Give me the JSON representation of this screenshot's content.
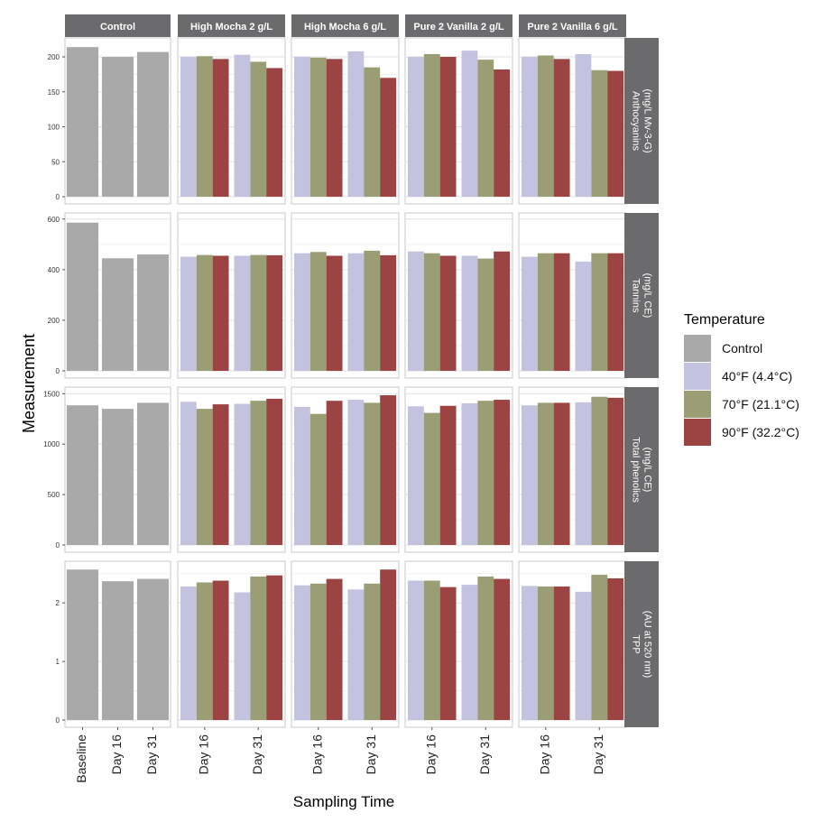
{
  "chart_data": {
    "type": "bar",
    "ylabel": "Measurement",
    "xlabel": "Sampling Time",
    "columns": [
      "Control",
      "High Mocha 2 g/L",
      "High Mocha 6 g/L",
      "Pure 2 Vanilla 2 g/L",
      "Pure 2 Vanilla 6 g/L"
    ],
    "legend": {
      "title": "Temperature",
      "position": "right",
      "entries": [
        {
          "label": "Control",
          "color": "#a9a9a9"
        },
        {
          "label": "40°F (4.4°C)",
          "color": "#c3c3e0"
        },
        {
          "label": "70°F (21.1°C)",
          "color": "#9b9d74"
        },
        {
          "label": "90°F (32.2°C)",
          "color": "#9c4444"
        }
      ]
    },
    "grid": true,
    "rows": [
      {
        "label": [
          "Anthocyanins",
          "(mg/L Mv-3-G)"
        ],
        "ylim": [
          0,
          222
        ],
        "ticks": [
          0,
          50,
          100,
          150,
          200
        ],
        "control": {
          "categories": [
            "Baseline",
            "Day 16",
            "Day 31"
          ],
          "values": [
            214,
            200,
            207
          ]
        },
        "treatments": [
          {
            "categories": [
              "Day 16",
              "Day 31"
            ],
            "series": [
              {
                "name": "40°F (4.4°C)",
                "values": [
                  200,
                  203
                ]
              },
              {
                "name": "70°F (21.1°C)",
                "values": [
                  201,
                  193
                ]
              },
              {
                "name": "90°F (32.2°C)",
                "values": [
                  197,
                  184
                ]
              }
            ]
          },
          {
            "categories": [
              "Day 16",
              "Day 31"
            ],
            "series": [
              {
                "name": "40°F (4.4°C)",
                "values": [
                  200,
                  208
                ]
              },
              {
                "name": "70°F (21.1°C)",
                "values": [
                  199,
                  185
                ]
              },
              {
                "name": "90°F (32.2°C)",
                "values": [
                  197,
                  170
                ]
              }
            ]
          },
          {
            "categories": [
              "Day 16",
              "Day 31"
            ],
            "series": [
              {
                "name": "40°F (4.4°C)",
                "values": [
                  200,
                  209
                ]
              },
              {
                "name": "70°F (21.1°C)",
                "values": [
                  204,
                  196
                ]
              },
              {
                "name": "90°F (32.2°C)",
                "values": [
                  200,
                  182
                ]
              }
            ]
          },
          {
            "categories": [
              "Day 16",
              "Day 31"
            ],
            "series": [
              {
                "name": "40°F (4.4°C)",
                "values": [
                  200,
                  204
                ]
              },
              {
                "name": "70°F (21.1°C)",
                "values": [
                  202,
                  181
                ]
              },
              {
                "name": "90°F (32.2°C)",
                "values": [
                  197,
                  180
                ]
              }
            ]
          }
        ]
      },
      {
        "label": [
          "Tannins",
          "(mg/L CE)"
        ],
        "ylim": [
          0,
          610
        ],
        "ticks": [
          0,
          200,
          400,
          600
        ],
        "control": {
          "categories": [
            "Baseline",
            "Day 16",
            "Day 31"
          ],
          "values": [
            586,
            445,
            460
          ]
        },
        "treatments": [
          {
            "categories": [
              "Day 16",
              "Day 31"
            ],
            "series": [
              {
                "name": "40°F (4.4°C)",
                "values": [
                  451,
                  455
                ]
              },
              {
                "name": "70°F (21.1°C)",
                "values": [
                  458,
                  458
                ]
              },
              {
                "name": "90°F (32.2°C)",
                "values": [
                  455,
                  457
                ]
              }
            ]
          },
          {
            "categories": [
              "Day 16",
              "Day 31"
            ],
            "series": [
              {
                "name": "40°F (4.4°C)",
                "values": [
                  465,
                  465
                ]
              },
              {
                "name": "70°F (21.1°C)",
                "values": [
                  470,
                  475
                ]
              },
              {
                "name": "90°F (32.2°C)",
                "values": [
                  455,
                  457
                ]
              }
            ]
          },
          {
            "categories": [
              "Day 16",
              "Day 31"
            ],
            "series": [
              {
                "name": "40°F (4.4°C)",
                "values": [
                  472,
                  455
                ]
              },
              {
                "name": "70°F (21.1°C)",
                "values": [
                  465,
                  444
                ]
              },
              {
                "name": "90°F (32.2°C)",
                "values": [
                  455,
                  472
                ]
              }
            ]
          },
          {
            "categories": [
              "Day 16",
              "Day 31"
            ],
            "series": [
              {
                "name": "40°F (4.4°C)",
                "values": [
                  451,
                  432
                ]
              },
              {
                "name": "70°F (21.1°C)",
                "values": [
                  465,
                  465
                ]
              },
              {
                "name": "90°F (32.2°C)",
                "values": [
                  465,
                  465
                ]
              }
            ]
          }
        ]
      },
      {
        "label": [
          "Total phenolics",
          "(mg/L CE)"
        ],
        "ylim": [
          0,
          1530
        ],
        "ticks": [
          0,
          500,
          1000,
          1500
        ],
        "control": {
          "categories": [
            "Baseline",
            "Day 16",
            "Day 31"
          ],
          "values": [
            1385,
            1350,
            1410
          ]
        },
        "treatments": [
          {
            "categories": [
              "Day 16",
              "Day 31"
            ],
            "series": [
              {
                "name": "40°F (4.4°C)",
                "values": [
                  1420,
                  1400
                ]
              },
              {
                "name": "70°F (21.1°C)",
                "values": [
                  1350,
                  1430
                ]
              },
              {
                "name": "90°F (32.2°C)",
                "values": [
                  1395,
                  1450
                ]
              }
            ]
          },
          {
            "categories": [
              "Day 16",
              "Day 31"
            ],
            "series": [
              {
                "name": "40°F (4.4°C)",
                "values": [
                  1370,
                  1440
                ]
              },
              {
                "name": "70°F (21.1°C)",
                "values": [
                  1300,
                  1410
                ]
              },
              {
                "name": "90°F (32.2°C)",
                "values": [
                  1430,
                  1485
                ]
              }
            ]
          },
          {
            "categories": [
              "Day 16",
              "Day 31"
            ],
            "series": [
              {
                "name": "40°F (4.4°C)",
                "values": [
                  1375,
                  1405
                ]
              },
              {
                "name": "70°F (21.1°C)",
                "values": [
                  1310,
                  1430
                ]
              },
              {
                "name": "90°F (32.2°C)",
                "values": [
                  1380,
                  1440
                ]
              }
            ]
          },
          {
            "categories": [
              "Day 16",
              "Day 31"
            ],
            "series": [
              {
                "name": "40°F (4.4°C)",
                "values": [
                  1385,
                  1415
                ]
              },
              {
                "name": "70°F (21.1°C)",
                "values": [
                  1410,
                  1470
                ]
              },
              {
                "name": "90°F (32.2°C)",
                "values": [
                  1410,
                  1460
                ]
              }
            ]
          }
        ]
      },
      {
        "label": [
          "TPP",
          "(AU at 520 nm)"
        ],
        "ylim": [
          0,
          2.65
        ],
        "ticks": [
          0,
          1,
          2
        ],
        "control": {
          "categories": [
            "Baseline",
            "Day 16",
            "Day 31"
          ],
          "values": [
            2.57,
            2.37,
            2.41
          ]
        },
        "treatments": [
          {
            "categories": [
              "Day 16",
              "Day 31"
            ],
            "series": [
              {
                "name": "40°F (4.4°C)",
                "values": [
                  2.28,
                  2.18
                ]
              },
              {
                "name": "70°F (21.1°C)",
                "values": [
                  2.35,
                  2.45
                ]
              },
              {
                "name": "90°F (32.2°C)",
                "values": [
                  2.38,
                  2.47
                ]
              }
            ]
          },
          {
            "categories": [
              "Day 16",
              "Day 31"
            ],
            "series": [
              {
                "name": "40°F (4.4°C)",
                "values": [
                  2.3,
                  2.23
                ]
              },
              {
                "name": "70°F (21.1°C)",
                "values": [
                  2.33,
                  2.33
                ]
              },
              {
                "name": "90°F (32.2°C)",
                "values": [
                  2.41,
                  2.57
                ]
              }
            ]
          },
          {
            "categories": [
              "Day 16",
              "Day 31"
            ],
            "series": [
              {
                "name": "40°F (4.4°C)",
                "values": [
                  2.38,
                  2.31
                ]
              },
              {
                "name": "70°F (21.1°C)",
                "values": [
                  2.38,
                  2.45
                ]
              },
              {
                "name": "90°F (32.2°C)",
                "values": [
                  2.27,
                  2.41
                ]
              }
            ]
          },
          {
            "categories": [
              "Day 16",
              "Day 31"
            ],
            "series": [
              {
                "name": "40°F (4.4°C)",
                "values": [
                  2.29,
                  2.19
                ]
              },
              {
                "name": "70°F (21.1°C)",
                "values": [
                  2.28,
                  2.48
                ]
              },
              {
                "name": "90°F (32.2°C)",
                "values": [
                  2.28,
                  2.42
                ]
              }
            ]
          }
        ]
      }
    ]
  }
}
